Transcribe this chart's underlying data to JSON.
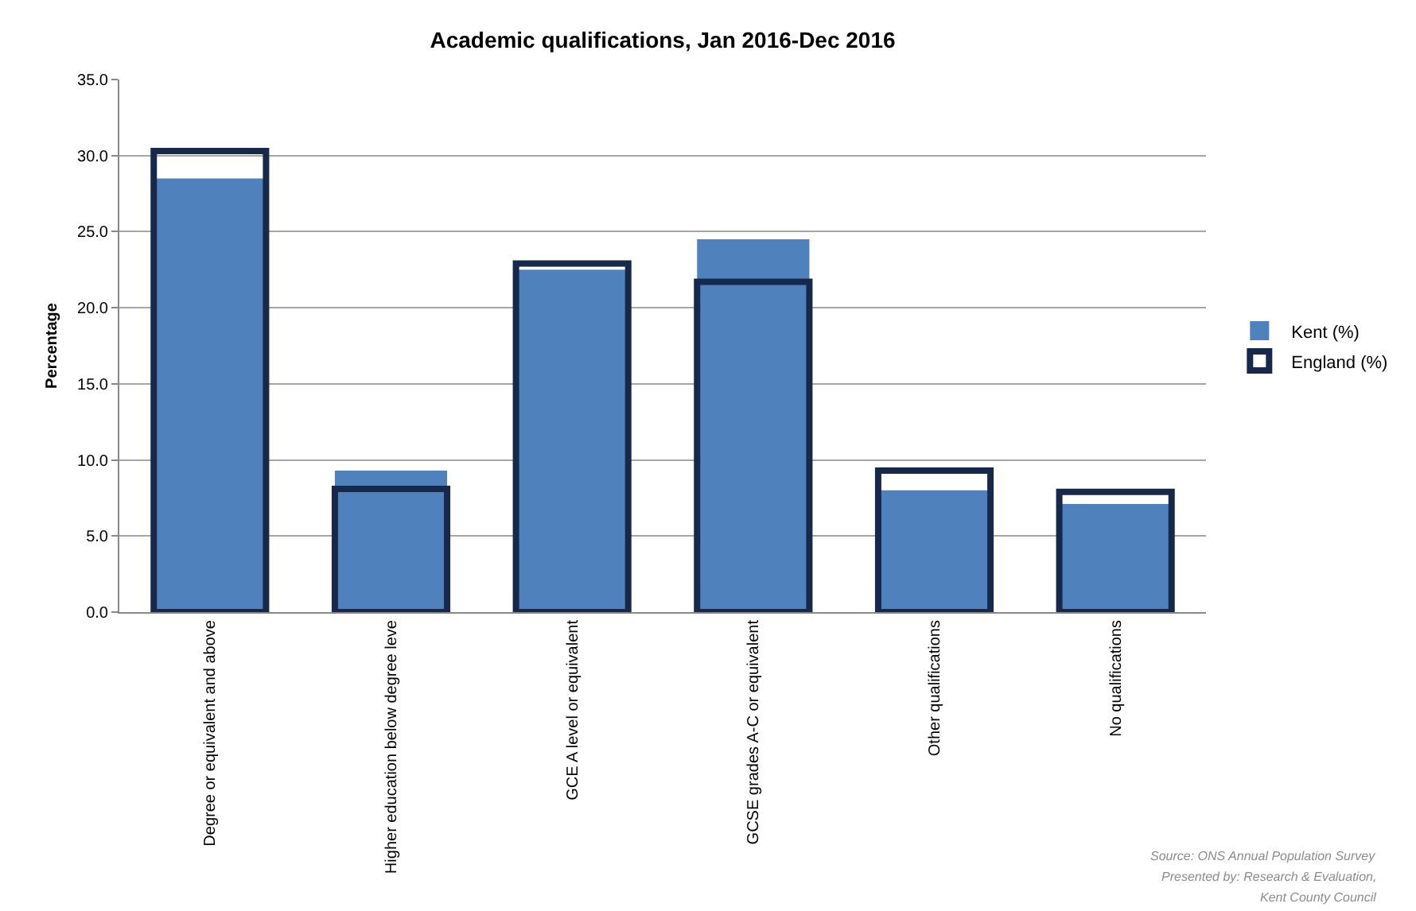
{
  "chart_data": {
    "type": "bar",
    "title": "Academic qualifications, Jan 2016-Dec 2016",
    "ylabel": "Percentage",
    "categories": [
      "Degree or equivalent and above",
      "Higher education below degree leve",
      "GCE A level or equivalent",
      "GCSE grades A-C or equivalent",
      "Other qualifications",
      "No qualifications"
    ],
    "series": [
      {
        "name": "Kent (%)",
        "color": "#4f81bd",
        "values": [
          28.5,
          9.3,
          22.5,
          24.5,
          8.0,
          7.1
        ]
      },
      {
        "name": "England (%)",
        "color": "#17294a",
        "values": [
          30.3,
          8.1,
          22.9,
          21.7,
          9.3,
          7.9
        ]
      }
    ],
    "ylim": [
      0,
      35
    ],
    "yticks": [
      {
        "value": 0,
        "label": "0.0"
      },
      {
        "value": 5,
        "label": "5.0"
      },
      {
        "value": 10,
        "label": "10.0"
      },
      {
        "value": 15,
        "label": "15.0"
      },
      {
        "value": 20,
        "label": "20.0"
      },
      {
        "value": 25,
        "label": "25.0"
      },
      {
        "value": 30,
        "label": "30.0"
      },
      {
        "value": 35,
        "label": "35.0"
      }
    ],
    "grid": "y",
    "legend": "right",
    "annotations": [
      "Source: ONS Annual Population Survey",
      "Presented by: Research & Evaluation,",
      "Kent County Council"
    ]
  }
}
